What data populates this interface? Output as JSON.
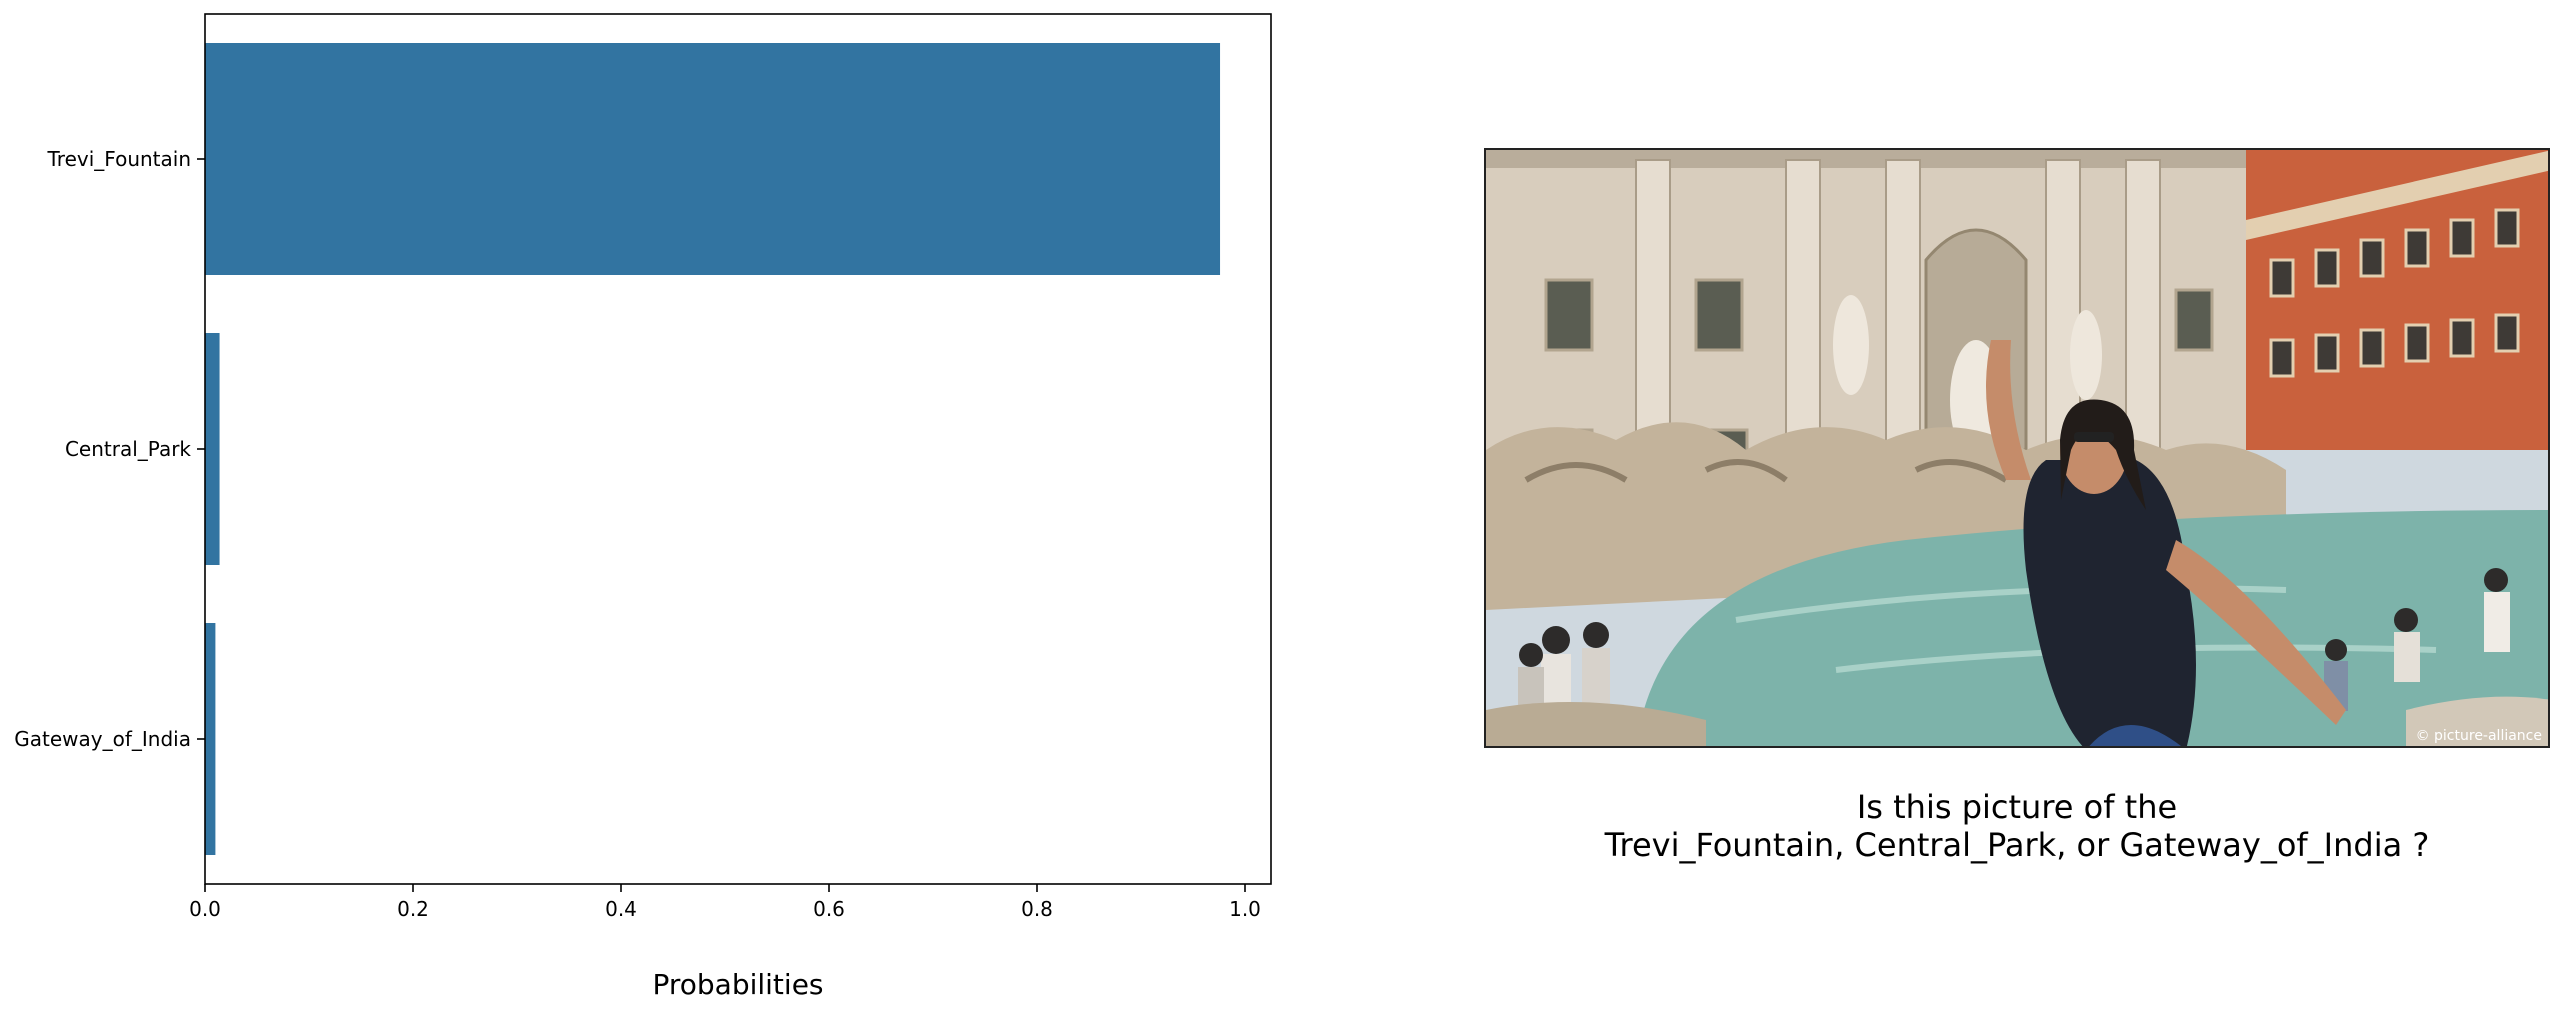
{
  "chart_data": {
    "type": "bar",
    "orientation": "horizontal",
    "categories": [
      "Trevi_Fountain",
      "Central_Park",
      "Gateway_of_India"
    ],
    "values": [
      0.976,
      0.014,
      0.01
    ],
    "xlabel": "Probabilities",
    "ylabel": "",
    "xlim": [
      0,
      1.025
    ],
    "xticks": [
      "0.0",
      "0.2",
      "0.4",
      "0.6",
      "0.8",
      "1.0"
    ],
    "grid": false,
    "bar_color": "#3274a1"
  },
  "image_panel": {
    "description_icon": "trevi-fountain-photo",
    "credit": "© picture-alliance"
  },
  "question": {
    "line1": "Is this picture of the",
    "line2": "Trevi_Fountain, Central_Park, or Gateway_of_India ?"
  }
}
